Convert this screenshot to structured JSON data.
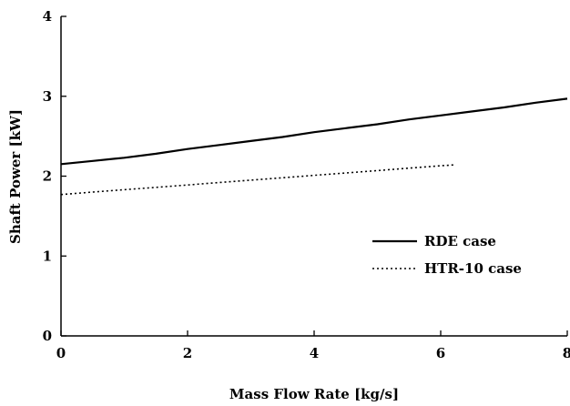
{
  "chart_data": {
    "type": "line",
    "title": "",
    "xlabel": "Mass Flow Rate [kg/s]",
    "ylabel": "Shaft Power [kW]",
    "xlim": [
      0,
      8
    ],
    "ylim": [
      0,
      4
    ],
    "x_ticks": [
      "0",
      "2",
      "4",
      "6",
      "8"
    ],
    "y_ticks": [
      "0",
      "1",
      "2",
      "3",
      "4"
    ],
    "grid": false,
    "legend_position": "right",
    "series": [
      {
        "name": "RDE case",
        "line_style": "solid",
        "color": "#000000",
        "x": [
          0,
          0.5,
          1,
          1.5,
          2,
          2.5,
          3,
          3.5,
          4,
          4.5,
          5,
          5.5,
          6,
          6.5,
          7,
          7.5,
          8
        ],
        "y": [
          2.15,
          2.19,
          2.23,
          2.28,
          2.34,
          2.39,
          2.44,
          2.49,
          2.55,
          2.6,
          2.65,
          2.71,
          2.76,
          2.81,
          2.86,
          2.92,
          2.97
        ]
      },
      {
        "name": "HTR-10 case",
        "line_style": "dotted",
        "color": "#000000",
        "x": [
          0,
          0.5,
          1,
          1.5,
          2,
          2.5,
          3,
          3.5,
          4,
          4.5,
          5,
          5.5,
          6,
          6.2
        ],
        "y": [
          1.77,
          1.8,
          1.83,
          1.86,
          1.89,
          1.92,
          1.95,
          1.98,
          2.01,
          2.04,
          2.07,
          2.1,
          2.13,
          2.14
        ]
      }
    ]
  }
}
